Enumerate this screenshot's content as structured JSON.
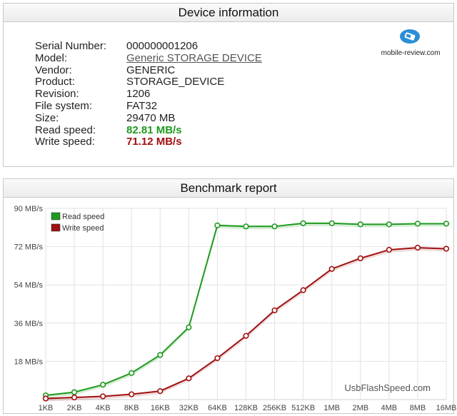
{
  "device_panel": {
    "title": "Device information",
    "fields": [
      {
        "label": "Serial Number:",
        "value": "000000001206",
        "style": "plain"
      },
      {
        "label": "Model:",
        "value": "Generic STORAGE DEVICE",
        "style": "link"
      },
      {
        "label": "Vendor:",
        "value": "GENERIC",
        "style": "plain"
      },
      {
        "label": "Product:",
        "value": "STORAGE_DEVICE",
        "style": "plain"
      },
      {
        "label": "Revision:",
        "value": "1206",
        "style": "plain"
      },
      {
        "label": "File system:",
        "value": "FAT32",
        "style": "plain"
      },
      {
        "label": "Size:",
        "value": "29470 MB",
        "style": "plain"
      },
      {
        "label": "Read speed:",
        "value": "82.81 MB/s",
        "style": "read"
      },
      {
        "label": "Write speed:",
        "value": "71.12 MB/s",
        "style": "write"
      }
    ],
    "logo_text": "mobile-review.com"
  },
  "bench_panel": {
    "title": "Benchmark report"
  },
  "colors": {
    "read": "#1e9a1e",
    "write": "#a01010",
    "grid": "#e2e2e2"
  },
  "chart_data": {
    "type": "line",
    "categories": [
      "1KB",
      "2KB",
      "4KB",
      "8KB",
      "16KB",
      "32KB",
      "64KB",
      "128KB",
      "256KB",
      "512KB",
      "1MB",
      "2MB",
      "4MB",
      "8MB",
      "16MB"
    ],
    "y_ticks": [
      "18 MB/s",
      "36 MB/s",
      "54 MB/s",
      "72 MB/s",
      "90 MB/s"
    ],
    "ylim": [
      0,
      90
    ],
    "grid": true,
    "legend_position": "top-left",
    "watermark": "UsbFlashSpeed.com",
    "series": [
      {
        "name": "Read speed",
        "values": [
          2,
          3.5,
          7,
          12.5,
          21,
          34,
          82,
          81.5,
          81.5,
          83,
          83,
          82.5,
          82.5,
          82.8,
          82.8
        ]
      },
      {
        "name": "Write speed",
        "values": [
          0.5,
          1,
          1.5,
          2.5,
          4,
          10,
          19.5,
          30,
          42,
          51.5,
          61.5,
          66.5,
          70.5,
          71.5,
          71
        ]
      }
    ]
  }
}
